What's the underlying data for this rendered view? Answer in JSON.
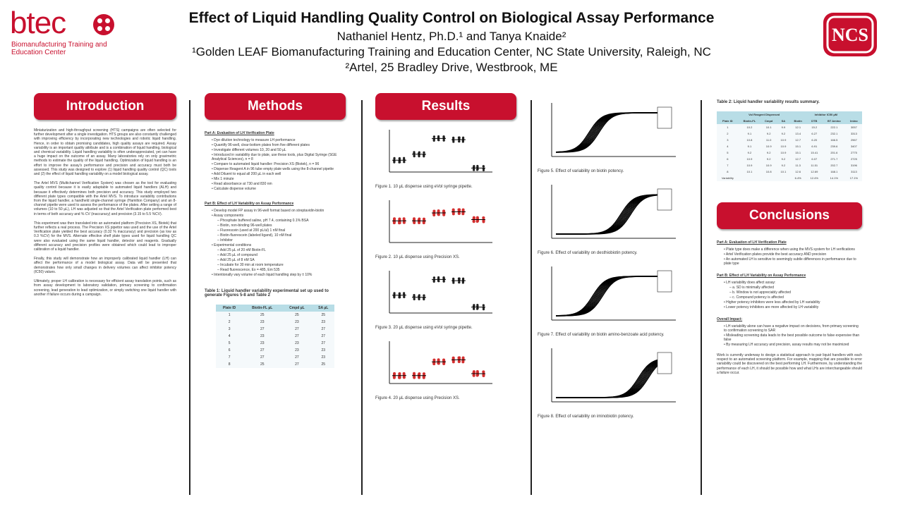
{
  "header": {
    "logo_word": "btec",
    "logo_sub": "Biomanufacturing Training and Education Center",
    "title": "Effect of Liquid Handling Quality Control on Biological Assay Performance",
    "authors": "Nathaniel Hentz, Ph.D.¹ and Tanya Knaide²",
    "affiliation1": "¹Golden LEAF Biomanufacturing Training and Education Center, NC State University, Raleigh, NC",
    "affiliation2": "²Artel, 25 Bradley Drive, Westbrook, ME",
    "ncs_logo_letters": "NCS"
  },
  "colors": {
    "accent": "#c8102e",
    "table_header": "#b8dde6"
  },
  "introduction": {
    "heading": "Introduction",
    "p1": "Miniaturization and high-throughput screening (HTS) campaigns are often selected for further development after a single investigation. HTS groups are also constantly challenged with improving efficiency by incorporating new technologies and robotic liquid handling. Hence, in order to obtain promising candidates, high quality assays are required. Assay variability is an important quality attribute and is a combination of liquid handling, biological and chemical variability. Liquid handling variability is often underappreciated, yet can have a huge impact on the outcome of an assay. Many laboratories rely on only gravimetric methods to estimate the quality of the liquid handling. Optimization of liquid handling is an effort to improve the assay's performance and precision and accuracy must both be assessed. This study was designed to explore (1) liquid handling quality control (QC) tools and (2) the effect of liquid handling variability on a model biological assay.",
    "p2": "The Artel MVS (Multichannel Verification System) was chosen as the tool for evaluating quality control because it is easily adaptable to automated liquid handlers (ALH) and because it effectively determines both precision and accuracy. This study employed two different plate types compatible with the Artel MVS. To introduce variability contributions from the liquid handler, a handheld single-channel syringe (Hamilton Company) and an 8-channel pipette were used to assess the performance of the plates. After setting a range of volumes (10 to 50 µL), LH was adjusted so that the Artel Verification plate performed best in terms of both accuracy and % CV (inaccuracy) and precision (3.15 to 5.5 %CV).",
    "p3": "This experiment was then translated into an automated platform (Precision XS, Biotek) that further reflects a real process. The Precision XS pipettor was used and the use of the Artel Verification plate yielded the best accuracy (0.32 % inaccuracy) and precision (as low as 0.3 %CV) for the MVS. Alternate effective shelf plate types used for liquid handling QC were also evaluated using the same liquid handler, detector and reagents. Gradually different accuracy and precision profiles were obtained which could lead to improper calibration of a liquid handler.",
    "p4": "Finally, this study will demonstrate how an improperly calibrated liquid handler (LH) can affect the performance of a model biological assay. Data will be presented that demonstrates how only small changes in delivery volumes can affect inhibitor potency (IC50) values.",
    "p5": "Ultimately, proper LH calibration is necessary for efficient assay translation points, such as from assay development to laboratory validation, primary screening to confirmation screening, lead generation to lead optimization, or simply switching one liquid handler with another if failure occurs during a campaign."
  },
  "methods": {
    "heading": "Methods",
    "partA_title": "Part A: Evaluation of LH Verification Plate",
    "partA_bullets": [
      "Dye dilution technology to measure LH performance",
      "Quantify 96-well, clear-bottom plates from five different plates",
      "Investigate different volumes 10, 20 and 50 µL",
      "Introduced in variability due to plate, use these tools, plus Digital Syringe (SGE Analytical Sciences), n = 8",
      "Compare to automated liquid handler: Precision XS (Biotek), n = 96",
      "Dispense Reagent A in 96 tube empty plate wells using the 8-channel pipette",
      "Add Diluent to equal all 200 µL in each well",
      "Mix 1 minute",
      "Read absorbance at 730 and 830 nm",
      "Calculate dispense volume"
    ],
    "partB_title": "Part B: Effect of LH Variability on Assay Performance",
    "partB_bullets": [
      "Develop model FP assay in 96-well format based on streptavidin-biotin",
      "Assay components",
      "Phosphate buffered saline, pH 7.4, containing 0.1% BSA",
      "Biotin, non-binding 96-well plates",
      "Fluorescein (used at 200 pL/ul) 1 nM final",
      "Biotin-fluorescein (labeled ligand), 10 nM final",
      "Inhibitor",
      "Experimental conditions",
      "Add 25 µL of 20 nM Biotin-FL",
      "Add 25 µL of compound",
      "Add 25 µL of 8 nM SA",
      "Incubate for 30 min at room temperature",
      "Read fluorescence, Ex = 485, Em 535",
      "Intentionally vary volume of each liquid handling step by ± 10%"
    ],
    "table_caption": "Table 1: Liquid handler variability experimental set up used to generate Figures 5-8 and Table 2",
    "table_headers": [
      "Plate ID",
      "Biotin-FL µL",
      "Cmpd µL",
      "SA µL"
    ],
    "table_rows": [
      [
        "1",
        "25",
        "25",
        "25"
      ],
      [
        "2",
        "23",
        "23",
        "23"
      ],
      [
        "3",
        "27",
        "27",
        "27"
      ],
      [
        "4",
        "23",
        "27",
        "27"
      ],
      [
        "5",
        "23",
        "23",
        "27"
      ],
      [
        "6",
        "27",
        "23",
        "23"
      ],
      [
        "7",
        "27",
        "27",
        "23"
      ],
      [
        "8",
        "25",
        "27",
        "25"
      ]
    ]
  },
  "results": {
    "heading": "Results",
    "fig1_caption": "Figure 1. 10 µL dispense using eVol syringe pipette.",
    "fig2_caption": "Figure 2. 10 µL dispense using Precision XS.",
    "fig3_caption": "Figure 3. 20 µL dispense using eVol syringe pipette.",
    "fig4_caption": "Figure 4. 20 µL dispense using Precision XS.",
    "fig5_caption": "Figure 5. Effect of variability on biotin potency.",
    "fig6_caption": "Figure 6. Effect of variability on desthiobiotin potency.",
    "fig7_caption": "Figure 7. Effect of variability on biotin amino-benzoate acid potency.",
    "fig8_caption": "Figure 8. Effect of variability on iminobiotin potency.",
    "table2_caption": "Table 2: Liquid handler variability results summary.",
    "table2_group1": "Vol Reagent Dispensed",
    "table2_group2": "Inhibitor IC50 µM",
    "table2_headers": [
      "Plate ID",
      "Biotin-FL",
      "Cmpd",
      "SA",
      "Biotin",
      "DTB",
      "BT Amino",
      "Imino"
    ],
    "table2_rows": [
      [
        "1",
        "10.2",
        "10.1",
        "9.9",
        "12.1",
        "15.2",
        "222.1",
        "3057"
      ],
      [
        "2",
        "9.1",
        "9.2",
        "9.2",
        "13.4",
        "6.27",
        "232.1",
        "3313"
      ],
      [
        "3",
        "10.8",
        "11.0",
        "10.9",
        "12.7",
        "6.20",
        "166.5",
        "2967"
      ],
      [
        "4",
        "9.1",
        "10.9",
        "10.9",
        "15.1",
        "6.91",
        "239.6",
        "3407"
      ],
      [
        "5",
        "9.2",
        "9.2",
        "10.9",
        "15.1",
        "15.41",
        "201.6",
        "2775"
      ],
      [
        "6",
        "10.9",
        "9.2",
        "9.2",
        "12.7",
        "6.07",
        "271.7",
        "2725"
      ],
      [
        "7",
        "10.9",
        "10.9",
        "9.2",
        "11.3",
        "11.51",
        "202.7",
        "3196"
      ],
      [
        "8",
        "10.1",
        "10.8",
        "10.1",
        "12.6",
        "12.69",
        "168.1",
        "3113"
      ],
      [
        "Variability",
        "",
        "",
        "",
        "6.4%",
        "12.4%",
        "14.1%",
        "17.1%"
      ]
    ]
  },
  "conclusions": {
    "heading": "Conclusions",
    "partA_title": "Part A: Evaluation of LH Verification Plate",
    "partA_bullets": [
      "Plate type does make a difference when using the MVS system for LH verifications",
      "Artel Verification plates provide the best accuracy AND precision",
      "An automated LH is sensitive to seemingly subtle differences in performance due to plate type"
    ],
    "partB_title": "Part B: Effect of LH Variability on Assay Performance",
    "partB_bullets": [
      "LH variability does affect assay:",
      "a. SD is minimally affected",
      "b. Window is not appreciably affected",
      "c. Compound potency is affected",
      "Higher potency inhibitors were less affected by LH variability",
      "Lower potency inhibitors are more affected by LH variability"
    ],
    "overall_title": "Overall Impact:",
    "overall_bullets": [
      "LH variability alone can have a negative impact on decisions, from primary screening to confirmation screening to SAR",
      "Misleading screening data leads to the best possible outcome to false expensive than false",
      "By measuring LH accuracy and precision, assay results may not be maximized"
    ],
    "final_para": "Work is currently underway to design a statistical approach to pair liquid handlers with each respect to an automated screening platform. For example, mapping that are possible to error variability could be discovered on the best performing LH. Furthermore, by understanding the performance of each LH, it should be possible how and what LHs are interchangeable should a failure occur."
  }
}
